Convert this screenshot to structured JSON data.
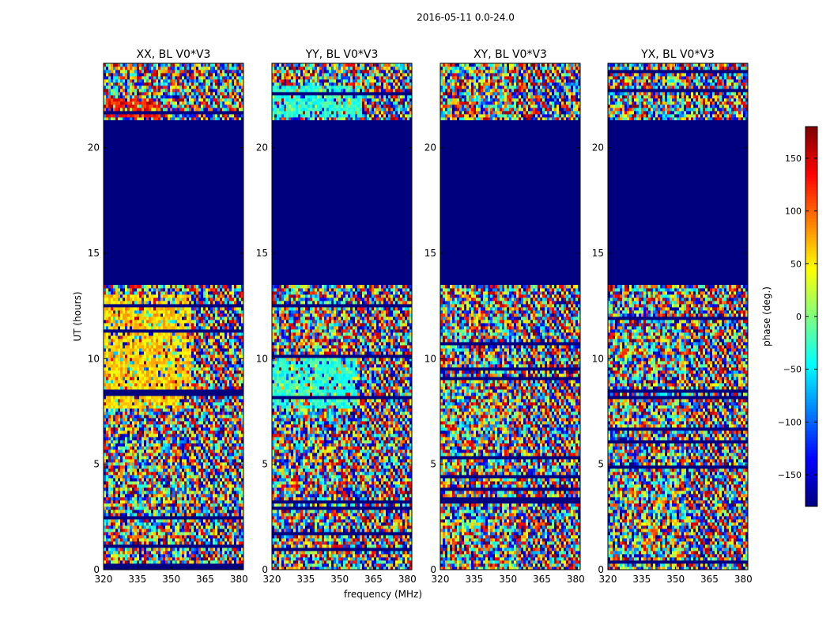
{
  "figure_title": "2016-05-11 0.0-24.0",
  "colormap": "jet",
  "colors": {
    "flagged": "#00007f",
    "jet_stops": [
      "#00007f",
      "#0000ff",
      "#007fff",
      "#00ffff",
      "#7fff7f",
      "#ffff00",
      "#ff7f00",
      "#ff0000",
      "#7f0000"
    ]
  },
  "colorbar": {
    "label": "phase (deg.)",
    "range": [
      -180,
      180
    ],
    "ticks": [
      -150,
      -100,
      -50,
      0,
      50,
      100,
      150
    ],
    "tick_labels": [
      "−150",
      "−100",
      "−50",
      "0",
      "50",
      "100",
      "150"
    ]
  },
  "chart_data": [
    {
      "type": "heatmap",
      "title": "XX, BL V0*V3",
      "xlabel": "",
      "ylabel": "UT (hours)",
      "xlim": [
        320,
        382
      ],
      "ylim": [
        0,
        24
      ],
      "xticks": [
        320,
        335,
        350,
        365,
        380
      ],
      "yticks": [
        0,
        5,
        10,
        15,
        20
      ],
      "flagged_ut_range": [
        13.5,
        21.3
      ],
      "dominant_phase_deg": [
        {
          "ut": [
            7.7,
            13.0
          ],
          "freq": [
            320,
            359
          ],
          "phase": 60
        },
        {
          "ut": [
            21.5,
            22.3
          ],
          "freq": [
            320,
            345
          ],
          "phase": 130
        }
      ]
    },
    {
      "type": "heatmap",
      "title": "YY, BL V0*V3",
      "xlabel": "frequency (MHz)",
      "ylabel": "",
      "xlim": [
        320,
        382
      ],
      "ylim": [
        0,
        24
      ],
      "xticks": [
        320,
        335,
        350,
        365,
        380
      ],
      "yticks": [
        0,
        5,
        10,
        15,
        20
      ],
      "flagged_ut_range": [
        13.5,
        21.3
      ],
      "dominant_phase_deg": [
        {
          "ut": [
            7.7,
            10.0
          ],
          "freq": [
            320,
            358
          ],
          "phase": -30
        },
        {
          "ut": [
            21.5,
            23.0
          ],
          "freq": [
            320,
            360
          ],
          "phase": -30
        }
      ]
    },
    {
      "type": "heatmap",
      "title": "XY, BL V0*V3",
      "xlabel": "",
      "ylabel": "",
      "xlim": [
        320,
        382
      ],
      "ylim": [
        0,
        24
      ],
      "xticks": [
        320,
        335,
        350,
        365,
        380
      ],
      "yticks": [
        0,
        5,
        10,
        15,
        20
      ],
      "flagged_ut_range": [
        13.5,
        21.3
      ],
      "dominant_phase_deg": []
    },
    {
      "type": "heatmap",
      "title": "YX, BL V0*V3",
      "xlabel": "",
      "ylabel": "",
      "xlim": [
        320,
        382
      ],
      "ylim": [
        0,
        24
      ],
      "xticks": [
        320,
        335,
        350,
        365,
        380
      ],
      "yticks": [
        0,
        5,
        10,
        15,
        20
      ],
      "flagged_ut_range": [
        13.5,
        21.3
      ],
      "dominant_phase_deg": []
    }
  ]
}
